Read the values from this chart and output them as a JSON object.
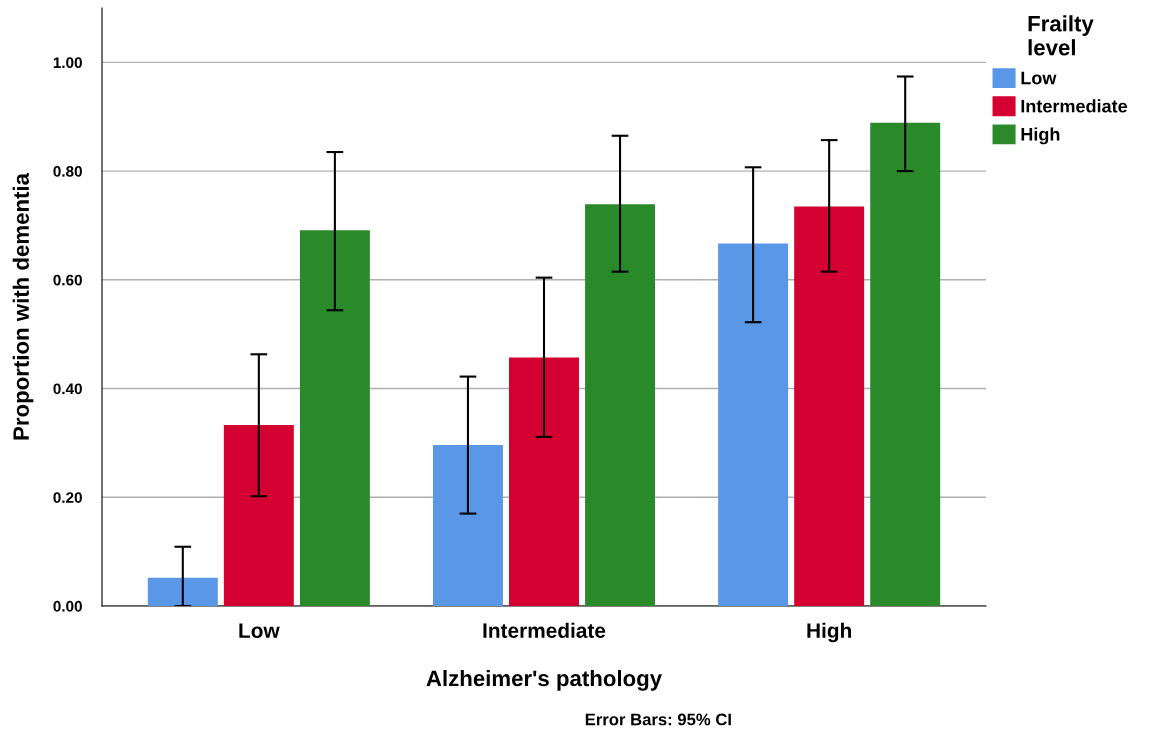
{
  "chart_data": {
    "type": "bar",
    "xlabel": "Alzheimer's pathology",
    "ylabel": "Proportion with dementia",
    "legend_title": "Frailty\nlevel",
    "categories": [
      "Low",
      "Intermediate",
      "High"
    ],
    "series": [
      {
        "name": "Low",
        "color": "#5a97e6",
        "values": [
          0.052,
          0.296,
          0.667
        ],
        "errors": [
          [
            0.0,
            0.109
          ],
          [
            0.17,
            0.422
          ],
          [
            0.522,
            0.807
          ]
        ]
      },
      {
        "name": "Intermediate",
        "color": "#d50032",
        "values": [
          0.333,
          0.457,
          0.735
        ],
        "errors": [
          [
            0.202,
            0.463
          ],
          [
            0.311,
            0.604
          ],
          [
            0.615,
            0.857
          ]
        ]
      },
      {
        "name": "High",
        "color": "#2a8a2a",
        "values": [
          0.691,
          0.739,
          0.889
        ],
        "errors": [
          [
            0.544,
            0.835
          ],
          [
            0.615,
            0.865
          ],
          [
            0.8,
            0.974
          ]
        ]
      }
    ],
    "ylim": [
      0,
      1.1
    ],
    "yticks": [
      {
        "value": 0,
        "label": "0.00"
      },
      {
        "value": 0.2,
        "label": "0.20"
      },
      {
        "value": 0.4,
        "label": "0.40"
      },
      {
        "value": 0.6,
        "label": "0.60"
      },
      {
        "value": 0.8,
        "label": "0.80"
      },
      {
        "value": 1.0,
        "label": "1.00"
      }
    ],
    "grid": "y",
    "legend": "top right",
    "annotations": [
      "Error Bars: 95% CI"
    ]
  }
}
